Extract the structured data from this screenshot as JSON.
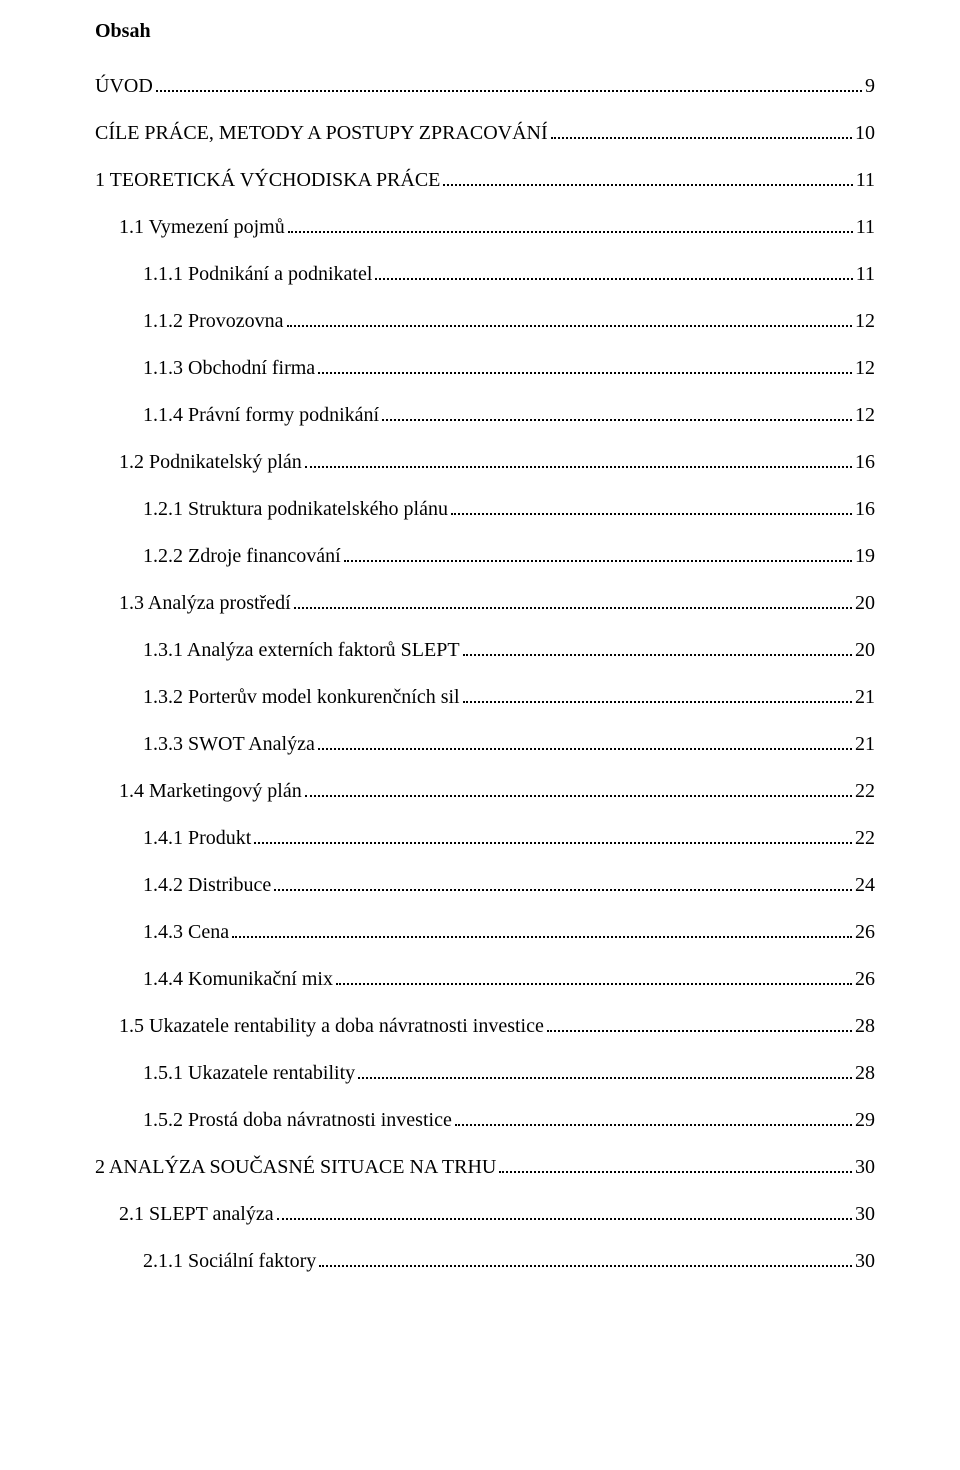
{
  "heading": "Obsah",
  "entries": [
    {
      "label": "ÚVOD",
      "page": "9",
      "indent": 0
    },
    {
      "label": "CÍLE PRÁCE, METODY A POSTUPY ZPRACOVÁNÍ",
      "page": "10",
      "indent": 0
    },
    {
      "label": "1 TEORETICKÁ VÝCHODISKA PRÁCE",
      "page": "11",
      "indent": 0
    },
    {
      "label": "1.1 Vymezení pojmů",
      "page": "11",
      "indent": 1
    },
    {
      "label": "1.1.1 Podnikání a podnikatel",
      "page": "11",
      "indent": 2
    },
    {
      "label": "1.1.2 Provozovna",
      "page": "12",
      "indent": 2
    },
    {
      "label": "1.1.3 Obchodní firma",
      "page": "12",
      "indent": 2
    },
    {
      "label": "1.1.4 Právní formy podnikání",
      "page": "12",
      "indent": 2
    },
    {
      "label": "1.2 Podnikatelský plán",
      "page": "16",
      "indent": 1
    },
    {
      "label": "1.2.1 Struktura podnikatelského plánu",
      "page": "16",
      "indent": 2
    },
    {
      "label": "1.2.2 Zdroje financování",
      "page": "19",
      "indent": 2
    },
    {
      "label": "1.3 Analýza prostředí",
      "page": "20",
      "indent": 1
    },
    {
      "label": "1.3.1 Analýza externích faktorů SLEPT",
      "page": "20",
      "indent": 2
    },
    {
      "label": "1.3.2 Porterův model konkurenčních sil",
      "page": "21",
      "indent": 2
    },
    {
      "label": "1.3.3 SWOT Analýza",
      "page": "21",
      "indent": 2
    },
    {
      "label": "1.4 Marketingový plán",
      "page": "22",
      "indent": 1
    },
    {
      "label": "1.4.1 Produkt",
      "page": "22",
      "indent": 2
    },
    {
      "label": "1.4.2 Distribuce",
      "page": "24",
      "indent": 2
    },
    {
      "label": "1.4.3 Cena",
      "page": "26",
      "indent": 2
    },
    {
      "label": "1.4.4 Komunikační mix",
      "page": "26",
      "indent": 2
    },
    {
      "label": "1.5 Ukazatele rentability a doba návratnosti investice",
      "page": "28",
      "indent": 1
    },
    {
      "label": "1.5.1 Ukazatele rentability",
      "page": "28",
      "indent": 2
    },
    {
      "label": "1.5.2 Prostá doba návratnosti investice",
      "page": "29",
      "indent": 2
    },
    {
      "label": "2 ANALÝZA SOUČASNÉ SITUACE NA TRHU",
      "page": "30",
      "indent": 0
    },
    {
      "label": "2.1 SLEPT analýza",
      "page": "30",
      "indent": 1
    },
    {
      "label": "2.1.1 Sociální faktory",
      "page": "30",
      "indent": 2
    }
  ]
}
